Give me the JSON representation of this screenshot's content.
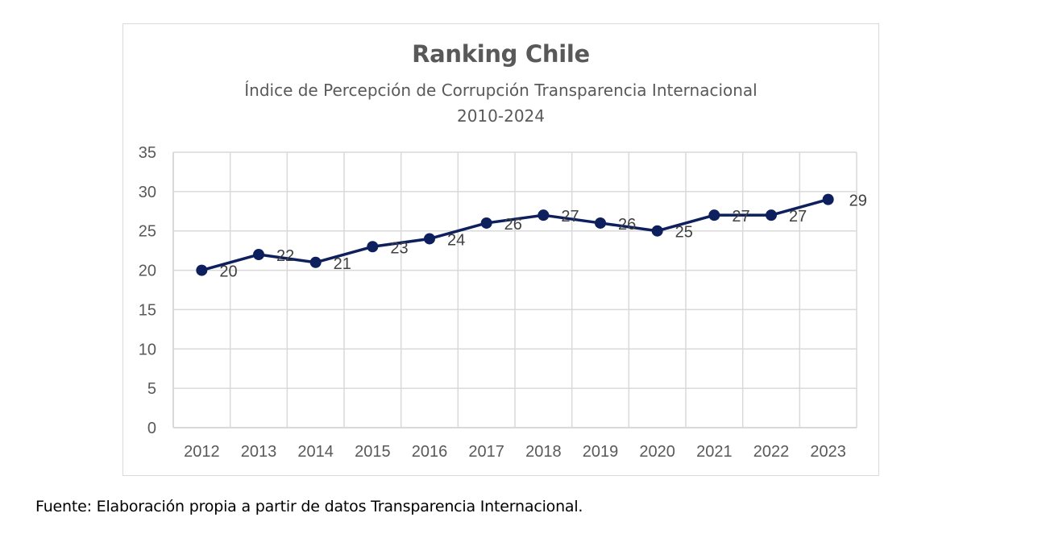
{
  "chart_data": {
    "type": "line",
    "title": "Ranking Chile",
    "subtitle_line1": "Índice de Percepción de Corrupción Transparencia Internacional",
    "subtitle_line2": "2010-2024",
    "xlabel": "",
    "ylabel": "",
    "categories": [
      "2012",
      "2013",
      "2014",
      "2015",
      "2016",
      "2017",
      "2018",
      "2019",
      "2020",
      "2021",
      "2022",
      "2023"
    ],
    "series": [
      {
        "name": "Ranking Chile",
        "values": [
          20,
          22,
          21,
          23,
          24,
          26,
          27,
          26,
          25,
          27,
          27,
          29
        ],
        "color": "#0d1f5c"
      }
    ],
    "ylim": [
      0,
      35
    ],
    "yticks": [
      0,
      5,
      10,
      15,
      20,
      25,
      30,
      35
    ],
    "grid": true,
    "legend": "none",
    "data_labels": true
  },
  "footer": {
    "source": "Fuente: Elaboración propia a partir de datos Transparencia Internacional."
  },
  "colors": {
    "line": "#0d1f5c",
    "grid": "#d9d9d9",
    "axis_text": "#595959",
    "title_text": "#595959"
  }
}
